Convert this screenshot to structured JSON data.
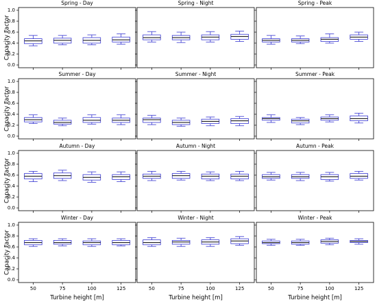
{
  "chart_data": [
    {
      "type": "box",
      "title": "Spring - Day",
      "ylabel": "Capacity Factor",
      "categories": [
        50,
        75,
        100,
        125
      ],
      "color": "#3535d0",
      "median_color": "#000000",
      "ylim": [
        -0.05,
        1.05
      ],
      "yticks": [
        {
          "value": 0,
          "label": "0.0"
        },
        0.2,
        0.4,
        0.6,
        0.8,
        {
          "value": 1,
          "label": "1.0"
        }
      ],
      "boxes": [
        {
          "low": 0.35,
          "q1": 0.39,
          "median": 0.44,
          "q3": 0.48,
          "high": 0.54
        },
        {
          "low": 0.37,
          "q1": 0.4,
          "median": 0.45,
          "q3": 0.49,
          "high": 0.54
        },
        {
          "low": 0.37,
          "q1": 0.4,
          "median": 0.45,
          "q3": 0.5,
          "high": 0.55
        },
        {
          "low": 0.38,
          "q1": 0.42,
          "median": 0.46,
          "q3": 0.51,
          "high": 0.57
        }
      ]
    },
    {
      "type": "box",
      "title": "Spring - Night",
      "categories": [
        50,
        75,
        100,
        125
      ],
      "color": "#3535d0",
      "median_color": "#000000",
      "ylim": [
        -0.05,
        1.05
      ],
      "yticks": [
        {
          "value": 0,
          "label": "0.0"
        },
        0.2,
        0.4,
        0.6,
        0.8,
        {
          "value": 1,
          "label": "1.0"
        }
      ],
      "boxes": [
        {
          "low": 0.42,
          "q1": 0.46,
          "median": 0.5,
          "q3": 0.55,
          "high": 0.61
        },
        {
          "low": 0.41,
          "q1": 0.46,
          "median": 0.5,
          "q3": 0.54,
          "high": 0.6
        },
        {
          "low": 0.42,
          "q1": 0.46,
          "median": 0.51,
          "q3": 0.55,
          "high": 0.61
        },
        {
          "low": 0.43,
          "q1": 0.47,
          "median": 0.52,
          "q3": 0.56,
          "high": 0.62
        }
      ]
    },
    {
      "type": "box",
      "title": "Spring - Peak",
      "categories": [
        50,
        75,
        100,
        125
      ],
      "color": "#3535d0",
      "median_color": "#000000",
      "ylim": [
        -0.05,
        1.05
      ],
      "yticks": [
        {
          "value": 0,
          "label": "0.0"
        },
        0.2,
        0.4,
        0.6,
        0.8,
        {
          "value": 1,
          "label": "1.0"
        }
      ],
      "boxes": [
        {
          "low": 0.38,
          "q1": 0.42,
          "median": 0.45,
          "q3": 0.48,
          "high": 0.54
        },
        {
          "low": 0.39,
          "q1": 0.42,
          "median": 0.45,
          "q3": 0.48,
          "high": 0.53
        },
        {
          "low": 0.4,
          "q1": 0.43,
          "median": 0.47,
          "q3": 0.5,
          "high": 0.57
        },
        {
          "low": 0.43,
          "q1": 0.47,
          "median": 0.51,
          "q3": 0.55,
          "high": 0.6
        }
      ]
    },
    {
      "type": "box",
      "title": "Summer - Day",
      "ylabel": "Capacity Factor",
      "categories": [
        50,
        75,
        100,
        125
      ],
      "color": "#3535d0",
      "median_color": "#000000",
      "ylim": [
        -0.05,
        1.05
      ],
      "yticks": [
        {
          "value": 0,
          "label": "0.0"
        },
        0.2,
        0.4,
        0.6,
        0.8,
        {
          "value": 1,
          "label": "1.0"
        }
      ],
      "boxes": [
        {
          "low": 0.23,
          "q1": 0.26,
          "median": 0.3,
          "q3": 0.34,
          "high": 0.39
        },
        {
          "low": 0.19,
          "q1": 0.22,
          "median": 0.25,
          "q3": 0.29,
          "high": 0.33
        },
        {
          "low": 0.22,
          "q1": 0.25,
          "median": 0.29,
          "q3": 0.34,
          "high": 0.39
        },
        {
          "low": 0.21,
          "q1": 0.25,
          "median": 0.29,
          "q3": 0.33,
          "high": 0.39
        }
      ]
    },
    {
      "type": "box",
      "title": "Summer - Night",
      "categories": [
        50,
        75,
        100,
        125
      ],
      "color": "#3535d0",
      "median_color": "#000000",
      "ylim": [
        -0.05,
        1.05
      ],
      "yticks": [
        {
          "value": 0,
          "label": "0.0"
        },
        0.2,
        0.4,
        0.6,
        0.8,
        {
          "value": 1,
          "label": "1.0"
        }
      ],
      "boxes": [
        {
          "low": 0.21,
          "q1": 0.25,
          "median": 0.3,
          "q3": 0.33,
          "high": 0.38
        },
        {
          "low": 0.18,
          "q1": 0.21,
          "median": 0.25,
          "q3": 0.29,
          "high": 0.33
        },
        {
          "low": 0.19,
          "q1": 0.23,
          "median": 0.27,
          "q3": 0.31,
          "high": 0.35
        },
        {
          "low": 0.19,
          "q1": 0.23,
          "median": 0.28,
          "q3": 0.32,
          "high": 0.36
        }
      ]
    },
    {
      "type": "box",
      "title": "Summer - Peak",
      "categories": [
        50,
        75,
        100,
        125
      ],
      "color": "#3535d0",
      "median_color": "#000000",
      "ylim": [
        -0.05,
        1.05
      ],
      "yticks": [
        {
          "value": 0,
          "label": "0.0"
        },
        0.2,
        0.4,
        0.6,
        0.8,
        {
          "value": 1,
          "label": "1.0"
        }
      ],
      "boxes": [
        {
          "low": 0.25,
          "q1": 0.29,
          "median": 0.32,
          "q3": 0.34,
          "high": 0.39
        },
        {
          "low": 0.21,
          "q1": 0.24,
          "median": 0.28,
          "q3": 0.31,
          "high": 0.34
        },
        {
          "low": 0.26,
          "q1": 0.29,
          "median": 0.32,
          "q3": 0.35,
          "high": 0.39
        },
        {
          "low": 0.24,
          "q1": 0.28,
          "median": 0.32,
          "q3": 0.37,
          "high": 0.42
        }
      ]
    },
    {
      "type": "box",
      "title": "Autumn - Day",
      "ylabel": "Capacity Factor",
      "categories": [
        50,
        75,
        100,
        125
      ],
      "color": "#3535d0",
      "median_color": "#000000",
      "ylim": [
        -0.05,
        1.05
      ],
      "yticks": [
        {
          "value": 0,
          "label": "0.0"
        },
        0.2,
        0.4,
        0.6,
        0.8,
        {
          "value": 1,
          "label": "1.0"
        }
      ],
      "boxes": [
        {
          "low": 0.48,
          "q1": 0.53,
          "median": 0.58,
          "q3": 0.63,
          "high": 0.67
        },
        {
          "low": 0.5,
          "q1": 0.54,
          "median": 0.59,
          "q3": 0.64,
          "high": 0.69
        },
        {
          "low": 0.47,
          "q1": 0.51,
          "median": 0.56,
          "q3": 0.61,
          "high": 0.66
        },
        {
          "low": 0.48,
          "q1": 0.52,
          "median": 0.57,
          "q3": 0.61,
          "high": 0.66
        }
      ]
    },
    {
      "type": "box",
      "title": "Autumn - Night",
      "categories": [
        50,
        75,
        100,
        125
      ],
      "color": "#3535d0",
      "median_color": "#000000",
      "ylim": [
        -0.05,
        1.05
      ],
      "yticks": [
        {
          "value": 0,
          "label": "0.0"
        },
        0.2,
        0.4,
        0.6,
        0.8,
        {
          "value": 1,
          "label": "1.0"
        }
      ],
      "boxes": [
        {
          "low": 0.5,
          "q1": 0.54,
          "median": 0.58,
          "q3": 0.62,
          "high": 0.67
        },
        {
          "low": 0.51,
          "q1": 0.54,
          "median": 0.59,
          "q3": 0.63,
          "high": 0.67
        },
        {
          "low": 0.5,
          "q1": 0.53,
          "median": 0.58,
          "q3": 0.62,
          "high": 0.66
        },
        {
          "low": 0.5,
          "q1": 0.53,
          "median": 0.58,
          "q3": 0.62,
          "high": 0.67
        }
      ]
    },
    {
      "type": "box",
      "title": "Autumn - Peak",
      "categories": [
        50,
        75,
        100,
        125
      ],
      "color": "#3535d0",
      "median_color": "#000000",
      "ylim": [
        -0.05,
        1.05
      ],
      "yticks": [
        {
          "value": 0,
          "label": "0.0"
        },
        0.2,
        0.4,
        0.6,
        0.8,
        {
          "value": 1,
          "label": "1.0"
        }
      ],
      "boxes": [
        {
          "low": 0.51,
          "q1": 0.54,
          "median": 0.57,
          "q3": 0.61,
          "high": 0.65
        },
        {
          "low": 0.5,
          "q1": 0.54,
          "median": 0.57,
          "q3": 0.61,
          "high": 0.65
        },
        {
          "low": 0.49,
          "q1": 0.52,
          "median": 0.57,
          "q3": 0.61,
          "high": 0.65
        },
        {
          "low": 0.51,
          "q1": 0.54,
          "median": 0.58,
          "q3": 0.63,
          "high": 0.67
        }
      ]
    },
    {
      "type": "box",
      "title": "Winter - Day",
      "ylabel": "Capacity Factor",
      "xlabel": "Turbine height [m]",
      "categories": [
        50,
        75,
        100,
        125
      ],
      "color": "#3535d0",
      "median_color": "#000000",
      "ylim": [
        -0.05,
        1.05
      ],
      "yticks": [
        {
          "value": 0,
          "label": "0.0"
        },
        0.2,
        0.4,
        0.6,
        0.8,
        {
          "value": 1,
          "label": "1.0"
        }
      ],
      "boxes": [
        {
          "low": 0.61,
          "q1": 0.64,
          "median": 0.68,
          "q3": 0.72,
          "high": 0.75
        },
        {
          "low": 0.62,
          "q1": 0.65,
          "median": 0.68,
          "q3": 0.72,
          "high": 0.75
        },
        {
          "low": 0.61,
          "q1": 0.64,
          "median": 0.68,
          "q3": 0.71,
          "high": 0.75
        },
        {
          "low": 0.62,
          "q1": 0.64,
          "median": 0.68,
          "q3": 0.72,
          "high": 0.75
        }
      ]
    },
    {
      "type": "box",
      "title": "Winter - Night",
      "xlabel": "Turbine height [m]",
      "categories": [
        50,
        75,
        100,
        125
      ],
      "color": "#3535d0",
      "median_color": "#000000",
      "ylim": [
        -0.05,
        1.05
      ],
      "yticks": [
        {
          "value": 0,
          "label": "0.0"
        },
        0.2,
        0.4,
        0.6,
        0.8,
        {
          "value": 1,
          "label": "1.0"
        }
      ],
      "boxes": [
        {
          "low": 0.61,
          "q1": 0.64,
          "median": 0.68,
          "q3": 0.73,
          "high": 0.77
        },
        {
          "low": 0.61,
          "q1": 0.65,
          "median": 0.69,
          "q3": 0.72,
          "high": 0.76
        },
        {
          "low": 0.61,
          "q1": 0.65,
          "median": 0.69,
          "q3": 0.73,
          "high": 0.77
        },
        {
          "low": 0.63,
          "q1": 0.66,
          "median": 0.71,
          "q3": 0.75,
          "high": 0.79
        }
      ]
    },
    {
      "type": "box",
      "title": "Winter - Peak",
      "xlabel": "Turbine height [m]",
      "categories": [
        50,
        75,
        100,
        125
      ],
      "color": "#3535d0",
      "median_color": "#000000",
      "ylim": [
        -0.05,
        1.05
      ],
      "yticks": [
        {
          "value": 0,
          "label": "0.0"
        },
        0.2,
        0.4,
        0.6,
        0.8,
        {
          "value": 1,
          "label": "1.0"
        }
      ],
      "boxes": [
        {
          "low": 0.63,
          "q1": 0.66,
          "median": 0.68,
          "q3": 0.71,
          "high": 0.74
        },
        {
          "low": 0.63,
          "q1": 0.65,
          "median": 0.68,
          "q3": 0.71,
          "high": 0.74
        },
        {
          "low": 0.64,
          "q1": 0.67,
          "median": 0.7,
          "q3": 0.73,
          "high": 0.76
        },
        {
          "low": 0.65,
          "q1": 0.68,
          "median": 0.7,
          "q3": 0.72,
          "high": 0.75
        }
      ]
    }
  ]
}
